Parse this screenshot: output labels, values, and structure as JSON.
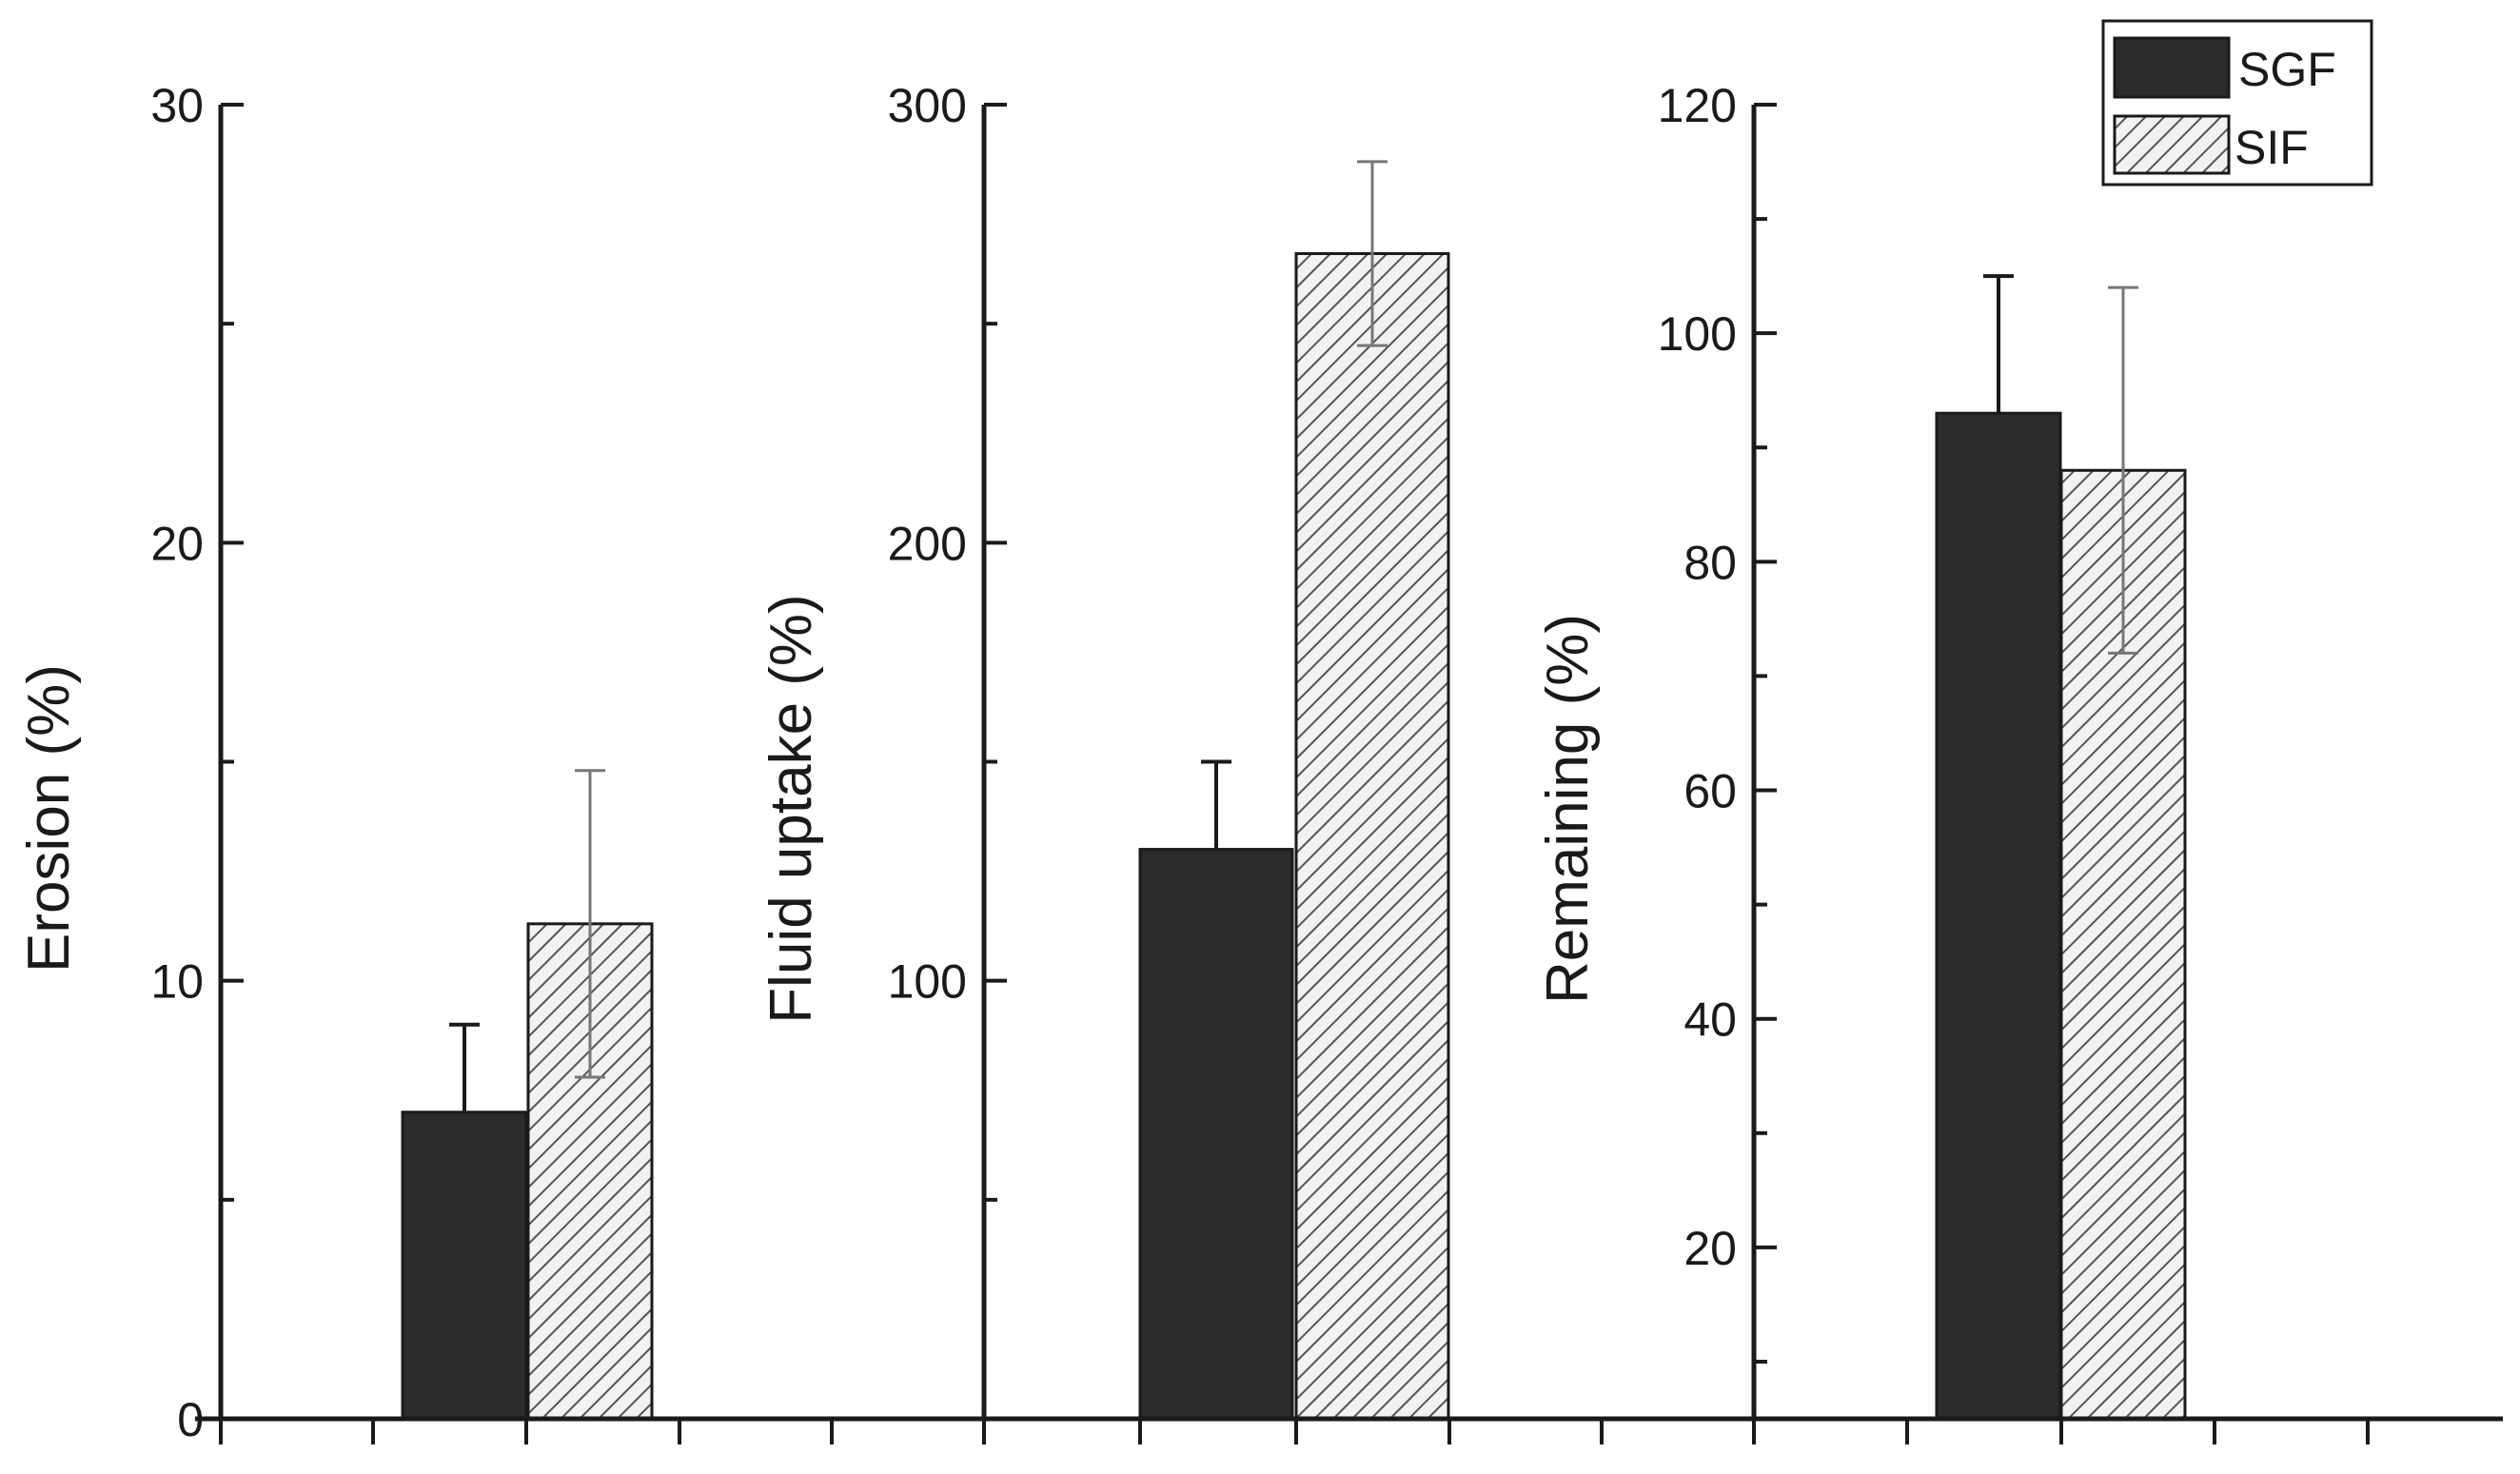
{
  "colors": {
    "sgf_fill": "#2b2b2b",
    "sif_stroke": "#555555",
    "sif_background": "#f2f2f2",
    "axis": "#1a1a1a",
    "error_bar_sgf": "#1a1a1a",
    "error_bar_sif": "#777777"
  },
  "legend": {
    "placement": "top-right",
    "items": [
      {
        "label": "SGF",
        "pattern": "solid"
      },
      {
        "label": "SIF",
        "pattern": "hatched"
      }
    ]
  },
  "chart_data": [
    {
      "type": "bar",
      "ylabel": "Erosion (%)",
      "ylim": [
        0,
        30
      ],
      "yticks": [
        0,
        10,
        20,
        30
      ],
      "grid": false,
      "series": [
        {
          "name": "SGF",
          "value": 7.0,
          "error": 2.0
        },
        {
          "name": "SIF",
          "value": 11.3,
          "error": 3.5
        }
      ]
    },
    {
      "type": "bar",
      "ylabel": "Fluid uptake (%)",
      "ylim": [
        0,
        300
      ],
      "yticks": [
        100,
        200,
        300
      ],
      "grid": false,
      "series": [
        {
          "name": "SGF",
          "value": 130,
          "error": 20
        },
        {
          "name": "SIF",
          "value": 266,
          "error": 21
        }
      ]
    },
    {
      "type": "bar",
      "ylabel": "Remaining (%)",
      "ylim": [
        5,
        120
      ],
      "yticks": [
        20,
        40,
        60,
        80,
        100,
        120
      ],
      "grid": false,
      "series": [
        {
          "name": "SGF",
          "value": 93,
          "error": 12
        },
        {
          "name": "SIF",
          "value": 88,
          "error": 16
        }
      ]
    }
  ]
}
